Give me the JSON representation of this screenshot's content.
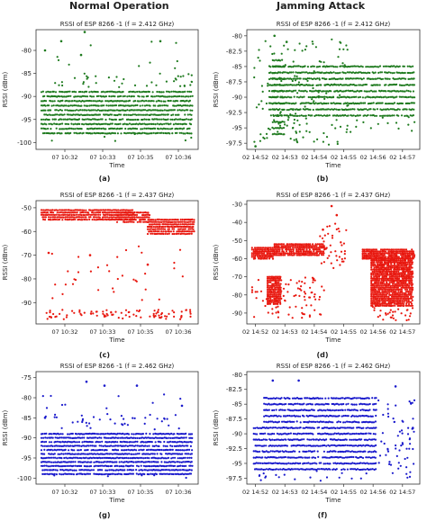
{
  "columns": {
    "left_title": "Normal Operation",
    "right_title": "Jamming Attack"
  },
  "chart_data": [
    {
      "id": "a",
      "caption": "(a)",
      "type": "scatter",
      "title": "RSSI of ESP 8266 -1 (f = 2.412 GHz)",
      "xlabel": "Time",
      "ylabel": "RSSI (dBm)",
      "color": "#1e7a1e",
      "yticks": [
        -80,
        -85,
        -90,
        -95,
        -100
      ],
      "ylim": [
        -101.5,
        -75.5
      ],
      "xticks": [
        "07 10:32",
        "07 10:33",
        "07 10:35",
        "07 10:36"
      ],
      "xlim": [
        0,
        9
      ],
      "xtick_pos": [
        1.6,
        3.7,
        5.8,
        7.9
      ],
      "bands": [
        {
          "y_from": -98,
          "y_to": -89,
          "x_from": 0.3,
          "x_to": 8.7
        }
      ],
      "sparse": [
        {
          "y_from": -88,
          "y_to": -85,
          "x_from": 0.3,
          "x_to": 8.7,
          "count": 40
        },
        {
          "y_from": -84,
          "y_to": -78,
          "x_from": 0.3,
          "x_to": 8.7,
          "count": 10
        },
        {
          "y_from": -100,
          "y_to": -98,
          "x_from": 0.3,
          "x_to": 8.7,
          "count": 6
        }
      ],
      "outliers": [
        [
          2.7,
          -76
        ],
        [
          1.4,
          -78
        ],
        [
          6.9,
          -78
        ],
        [
          0.5,
          -80
        ],
        [
          2.5,
          -81
        ]
      ]
    },
    {
      "id": "b",
      "caption": "(b)",
      "type": "scatter",
      "title": "RSSI of ESP 8266 -1 (f = 2.412 GHz)",
      "xlabel": "Time",
      "ylabel": "RSSI (dBm)",
      "color": "#1e7a1e",
      "yticks": [
        -80.0,
        -82.5,
        -85.0,
        -87.5,
        -90.0,
        -92.5,
        -95.0,
        -97.5
      ],
      "ylim": [
        -98.5,
        -79
      ],
      "xticks": [
        "02 14:52",
        "02 14:53",
        "02 14:54",
        "02 14:55",
        "02 14:56",
        "02 14:57"
      ],
      "xlim": [
        0,
        10
      ],
      "xtick_pos": [
        0.5,
        2.2,
        3.9,
        5.6,
        7.3,
        9.0
      ],
      "bands": [
        {
          "y_from": -93,
          "y_to": -85,
          "x_from": 1.3,
          "x_to": 9.7
        },
        {
          "y_from": -96,
          "y_to": -84,
          "x_from": 1.5,
          "x_to": 2.2
        }
      ],
      "sparse": [
        {
          "y_from": -98,
          "y_to": -80,
          "x_from": 0.4,
          "x_to": 6.0,
          "count": 120
        },
        {
          "y_from": -96,
          "y_to": -93,
          "x_from": 0.4,
          "x_to": 9.7,
          "count": 30
        }
      ],
      "outliers": [
        [
          1.6,
          -80
        ],
        [
          2.3,
          -81
        ],
        [
          0.5,
          -98
        ]
      ]
    },
    {
      "id": "c",
      "caption": "(c)",
      "type": "scatter",
      "title": "RSSI of ESP 8266 -1 (f = 2.437 GHz)",
      "xlabel": "Time",
      "ylabel": "RSSI (dBm)",
      "color": "#e8170e",
      "yticks": [
        -50,
        -60,
        -70,
        -80,
        -90
      ],
      "ylim": [
        -99,
        -47
      ],
      "xticks": [
        "07 10:32",
        "07 10:33",
        "07 10:35",
        "07 10:36"
      ],
      "xlim": [
        0,
        9
      ],
      "xtick_pos": [
        1.6,
        3.7,
        5.8,
        7.9
      ],
      "bands": [
        {
          "y_from": -55,
          "y_to": -51,
          "x_from": 0.3,
          "x_to": 5.5
        },
        {
          "y_from": -56,
          "y_to": -52,
          "x_from": 4.5,
          "x_to": 6.3
        },
        {
          "y_from": -61,
          "y_to": -55,
          "x_from": 6.2,
          "x_to": 8.8
        }
      ],
      "sparse": [
        {
          "y_from": -97,
          "y_to": -93,
          "x_from": 0.4,
          "x_to": 8.8,
          "count": 90
        },
        {
          "y_from": -90,
          "y_to": -65,
          "x_from": 0.4,
          "x_to": 8.8,
          "count": 35
        }
      ],
      "outliers": [
        [
          0.7,
          -69
        ],
        [
          3.0,
          -70
        ],
        [
          6.2,
          -74
        ]
      ]
    },
    {
      "id": "d",
      "caption": "(d)",
      "type": "scatter",
      "title": "RSSI of ESP 8266 -1 (f = 2.437 GHz)",
      "xlabel": "Time",
      "ylabel": "RSSI (dBm)",
      "color": "#e8170e",
      "yticks": [
        -30,
        -40,
        -50,
        -60,
        -70,
        -80,
        -90
      ],
      "ylim": [
        -96,
        -28
      ],
      "xticks": [
        "02 14:52",
        "02 14:53",
        "02 14:54",
        "02 14:55",
        "02 14:56",
        "02 14:57"
      ],
      "xlim": [
        0,
        10
      ],
      "xtick_pos": [
        0.5,
        2.2,
        3.9,
        5.6,
        7.3,
        9.0
      ],
      "bands": [
        {
          "y_from": -60,
          "y_to": -54,
          "x_from": 0.3,
          "x_to": 1.6
        },
        {
          "y_from": -58,
          "y_to": -52,
          "x_from": 1.6,
          "x_to": 4.5
        },
        {
          "y_from": -85,
          "y_to": -70,
          "x_from": 1.2,
          "x_to": 2.0
        },
        {
          "y_from": -60,
          "y_to": -55,
          "x_from": 6.7,
          "x_to": 9.7
        },
        {
          "y_from": -86,
          "y_to": -60,
          "x_from": 7.2,
          "x_to": 9.6
        }
      ],
      "sparse": [
        {
          "y_from": -93,
          "y_to": -70,
          "x_from": 0.3,
          "x_to": 4.5,
          "count": 90
        },
        {
          "y_from": -70,
          "y_to": -40,
          "x_from": 4.2,
          "x_to": 5.8,
          "count": 40
        },
        {
          "y_from": -94,
          "y_to": -86,
          "x_from": 6.8,
          "x_to": 9.6,
          "count": 30
        }
      ],
      "outliers": [
        [
          4.9,
          -31
        ],
        [
          5.2,
          -36
        ],
        [
          4.4,
          -44
        ]
      ]
    },
    {
      "id": "g",
      "caption": "(g)",
      "type": "scatter",
      "title": "RSSI of ESP 8266 -1 (f = 2.462 GHz)",
      "xlabel": "Time",
      "ylabel": "RSSI (dBm)",
      "color": "#1a1acc",
      "yticks": [
        -75,
        -80,
        -85,
        -90,
        -95,
        -100
      ],
      "ylim": [
        -101.5,
        -73.5
      ],
      "xticks": [
        "07 10:32",
        "07 10:33",
        "07 10:35",
        "07 10:36"
      ],
      "xlim": [
        0,
        9
      ],
      "xtick_pos": [
        1.6,
        3.7,
        5.8,
        7.9
      ],
      "bands": [
        {
          "y_from": -99,
          "y_to": -89,
          "x_from": 0.3,
          "x_to": 8.7
        }
      ],
      "sparse": [
        {
          "y_from": -88,
          "y_to": -84,
          "x_from": 0.3,
          "x_to": 8.7,
          "count": 40
        },
        {
          "y_from": -83,
          "y_to": -77,
          "x_from": 0.3,
          "x_to": 8.7,
          "count": 10
        },
        {
          "y_from": -100,
          "y_to": -99,
          "x_from": 0.3,
          "x_to": 8.7,
          "count": 5
        }
      ],
      "outliers": [
        [
          2.8,
          -76
        ],
        [
          3.8,
          -77
        ],
        [
          5.6,
          -77
        ],
        [
          0.5,
          -85
        ],
        [
          8.1,
          -82
        ]
      ]
    },
    {
      "id": "f",
      "caption": "(f)",
      "type": "scatter",
      "title": "RSSI of ESP 8266 -1 (f = 2.462 GHz)",
      "xlabel": "Time",
      "ylabel": "RSSI (dBm)",
      "color": "#1a1acc",
      "yticks": [
        -80.0,
        -82.5,
        -85.0,
        -87.5,
        -90.0,
        -92.5,
        -95.0,
        -97.5
      ],
      "ylim": [
        -98.5,
        -79.5
      ],
      "xticks": [
        "02 14:52",
        "02 14:53",
        "02 14:54",
        "02 14:55",
        "02 14:56",
        "02 14:57"
      ],
      "xlim": [
        0,
        10
      ],
      "xtick_pos": [
        0.5,
        2.2,
        3.9,
        5.6,
        7.3,
        9.0
      ],
      "bands": [
        {
          "y_from": -96,
          "y_to": -89,
          "x_from": 0.4,
          "x_to": 7.5
        },
        {
          "y_from": -88,
          "y_to": -84,
          "x_from": 1.0,
          "x_to": 7.5
        }
      ],
      "sparse": [
        {
          "y_from": -98,
          "y_to": -96,
          "x_from": 0.4,
          "x_to": 9.7,
          "count": 25
        },
        {
          "y_from": -96,
          "y_to": -84,
          "x_from": 7.5,
          "x_to": 9.7,
          "count": 60
        }
      ],
      "outliers": [
        [
          1.5,
          -81
        ],
        [
          3.0,
          -81
        ],
        [
          8.6,
          -82
        ],
        [
          9.6,
          -89
        ]
      ]
    }
  ]
}
